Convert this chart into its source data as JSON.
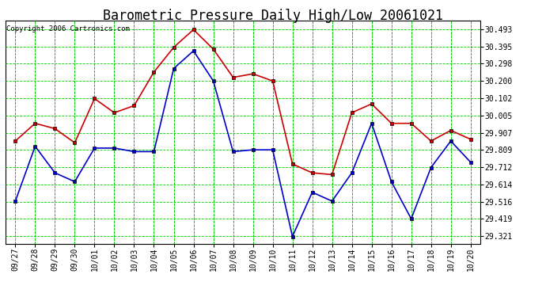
{
  "title": "Barometric Pressure Daily High/Low 20061021",
  "copyright": "Copyright 2006 Cartronics.com",
  "dates": [
    "09/27",
    "09/28",
    "09/29",
    "09/30",
    "10/01",
    "10/02",
    "10/03",
    "10/04",
    "10/05",
    "10/06",
    "10/07",
    "10/08",
    "10/09",
    "10/10",
    "10/11",
    "10/12",
    "10/13",
    "10/14",
    "10/15",
    "10/16",
    "10/17",
    "10/18",
    "10/19",
    "10/20"
  ],
  "high": [
    29.86,
    29.96,
    29.93,
    29.85,
    30.1,
    30.02,
    30.06,
    30.25,
    30.39,
    30.49,
    30.38,
    30.22,
    30.24,
    30.2,
    29.73,
    29.68,
    29.67,
    30.02,
    30.07,
    29.96,
    29.96,
    29.86,
    29.92,
    29.87
  ],
  "low": [
    29.52,
    29.83,
    29.68,
    29.63,
    29.82,
    29.82,
    29.8,
    29.8,
    30.27,
    30.37,
    30.2,
    29.8,
    29.81,
    29.81,
    29.32,
    29.57,
    29.52,
    29.68,
    29.96,
    29.63,
    29.42,
    29.71,
    29.86,
    29.74
  ],
  "high_color": "#cc0000",
  "low_color": "#0000cc",
  "marker_color": "#000000",
  "bg_color": "#ffffff",
  "plot_bg_color": "#ffffff",
  "grid_color": "#00cc00",
  "title_fontsize": 12,
  "copyright_fontsize": 6.5,
  "tick_fontsize": 7,
  "ytick_values": [
    29.321,
    29.419,
    29.516,
    29.614,
    29.712,
    29.809,
    29.907,
    30.005,
    30.102,
    30.2,
    30.298,
    30.395,
    30.493
  ],
  "ylim": [
    29.28,
    30.54
  ],
  "marker": "s",
  "marker_size": 2.5,
  "linewidth": 1.2
}
